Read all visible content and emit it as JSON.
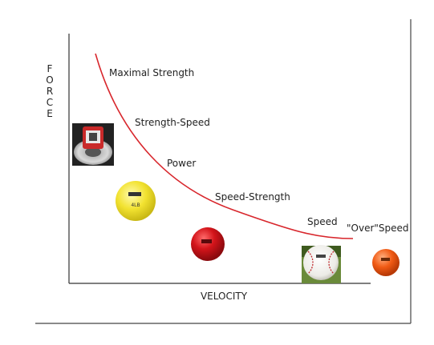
{
  "axes": {
    "y_label": "FORCE",
    "x_label": "VELOCITY"
  },
  "curve": {
    "color": "#d8262c"
  },
  "zones": [
    {
      "label": "Maximal Strength"
    },
    {
      "label": "Strength-Speed"
    },
    {
      "label": "Power"
    },
    {
      "label": "Speed-Strength"
    },
    {
      "label": "Speed"
    },
    {
      "label": "\"Over\"Speed"
    }
  ],
  "equipment": [
    {
      "icon": "weight-plate-icon"
    },
    {
      "icon": "yellow-medicine-ball-icon",
      "text": "4LB"
    },
    {
      "icon": "red-weighted-ball-icon"
    },
    {
      "icon": "baseball-icon"
    },
    {
      "icon": "orange-weighted-ball-icon"
    }
  ],
  "colors": {
    "curve": "#d8262c",
    "axis": "#333333",
    "yellow_ball": "#f2e230",
    "red_ball": "#d3141a",
    "orange_ball": "#f05a14"
  }
}
